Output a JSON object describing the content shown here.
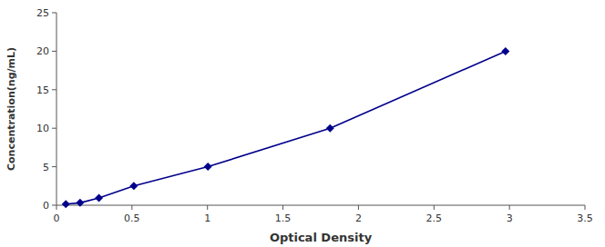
{
  "chart_data": {
    "type": "line",
    "xlabel": "Optical Density",
    "ylabel": "Concentration(ng/mL)",
    "x": [
      0.062,
      0.156,
      0.281,
      0.512,
      1.003,
      1.812,
      2.974
    ],
    "values": [
      0.156,
      0.312,
      0.937,
      2.5,
      5.0,
      10.0,
      20.0
    ],
    "color": "#00008B",
    "marker": "diamond",
    "xlim": [
      0,
      3.5
    ],
    "ylim": [
      0,
      25
    ],
    "xticks": [
      0,
      0.5,
      1,
      1.5,
      2,
      2.5,
      3,
      3.5
    ],
    "yticks": [
      0,
      5,
      10,
      15,
      20,
      25
    ]
  }
}
